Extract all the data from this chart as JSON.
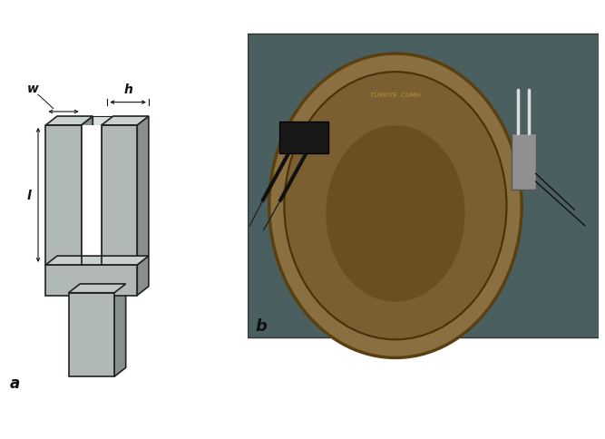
{
  "bg_color": "#ffffff",
  "label_a": "a",
  "label_b": "b",
  "label_w": "w",
  "label_h": "h",
  "label_l": "l",
  "prong_fill": "#b0b8b8",
  "prong_edge": "#222222",
  "base_fill": "#a8b0b0",
  "base_edge": "#222222",
  "stem_fill": "#b0b8b8",
  "stem_edge": "#222222",
  "side_fill": "#888f8f",
  "top_fill": "#c8d0d0",
  "annotation_color": "#111111",
  "photo_bg": "#4a6060",
  "coin_outer": "#8a7040",
  "coin_inner": "#7a6030",
  "coin_center": "#6a5020"
}
